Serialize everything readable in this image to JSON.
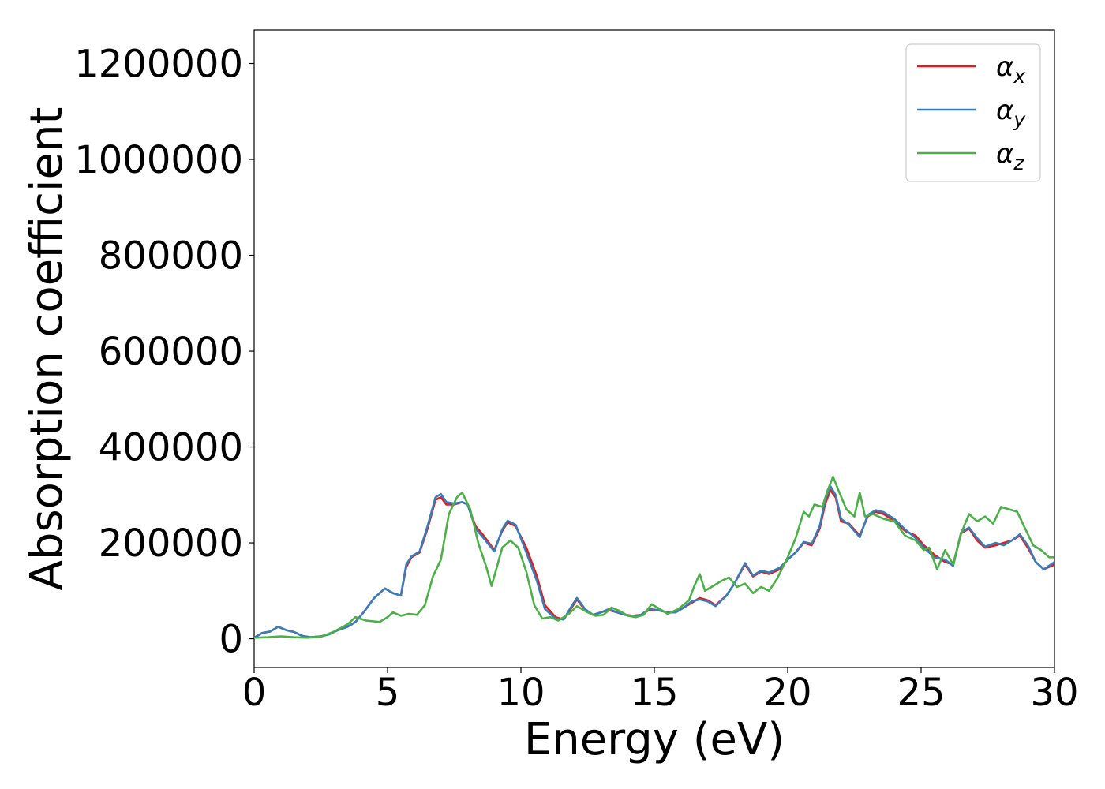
{
  "chart_data": {
    "type": "line",
    "title": "",
    "xlabel": "Energy (eV)",
    "ylabel": "Absorption coefficient",
    "xlim": [
      0,
      30
    ],
    "ylim": [
      -60000,
      1270000
    ],
    "xticks": [
      0,
      5,
      10,
      15,
      20,
      25,
      30
    ],
    "yticks": [
      0,
      200000,
      400000,
      600000,
      800000,
      1000000,
      1200000
    ],
    "xtick_labels": [
      "0",
      "5",
      "10",
      "15",
      "20",
      "25",
      "30"
    ],
    "ytick_labels": [
      "0",
      "200000",
      "400000",
      "600000",
      "800000",
      "1000000",
      "1200000"
    ],
    "grid": false,
    "legend_position": "top-right",
    "series": [
      {
        "name": "α",
        "subscript": "x",
        "color": "#e41a1c",
        "points": [
          [
            0,
            2000
          ],
          [
            0.3,
            12000
          ],
          [
            0.6,
            15000
          ],
          [
            0.9,
            25000
          ],
          [
            1.2,
            18000
          ],
          [
            1.5,
            14000
          ],
          [
            1.8,
            6000
          ],
          [
            2.1,
            3000
          ],
          [
            2.5,
            5000
          ],
          [
            2.8,
            9000
          ],
          [
            3.1,
            17000
          ],
          [
            3.5,
            25000
          ],
          [
            3.8,
            35000
          ],
          [
            4.1,
            55000
          ],
          [
            4.5,
            85000
          ],
          [
            4.7,
            95000
          ],
          [
            4.9,
            105000
          ],
          [
            5.2,
            95000
          ],
          [
            5.5,
            90000
          ],
          [
            5.7,
            150000
          ],
          [
            5.9,
            170000
          ],
          [
            6.2,
            180000
          ],
          [
            6.5,
            230000
          ],
          [
            6.8,
            290000
          ],
          [
            7.0,
            295000
          ],
          [
            7.2,
            280000
          ],
          [
            7.5,
            280000
          ],
          [
            7.8,
            285000
          ],
          [
            8.0,
            280000
          ],
          [
            8.3,
            235000
          ],
          [
            8.6,
            215000
          ],
          [
            9.0,
            185000
          ],
          [
            9.3,
            225000
          ],
          [
            9.5,
            243000
          ],
          [
            9.8,
            235000
          ],
          [
            10.2,
            190000
          ],
          [
            10.6,
            130000
          ],
          [
            10.9,
            70000
          ],
          [
            11.3,
            45000
          ],
          [
            11.6,
            40000
          ],
          [
            11.9,
            65000
          ],
          [
            12.1,
            82000
          ],
          [
            12.4,
            60000
          ],
          [
            12.7,
            50000
          ],
          [
            13.0,
            55000
          ],
          [
            13.3,
            60000
          ],
          [
            13.6,
            55000
          ],
          [
            13.9,
            50000
          ],
          [
            14.2,
            48000
          ],
          [
            14.5,
            50000
          ],
          [
            14.8,
            60000
          ],
          [
            15.1,
            60000
          ],
          [
            15.5,
            55000
          ],
          [
            15.8,
            55000
          ],
          [
            16.1,
            65000
          ],
          [
            16.4,
            75000
          ],
          [
            16.7,
            85000
          ],
          [
            17.0,
            80000
          ],
          [
            17.3,
            70000
          ],
          [
            17.7,
            90000
          ],
          [
            18.0,
            115000
          ],
          [
            18.4,
            155000
          ],
          [
            18.7,
            130000
          ],
          [
            19.0,
            140000
          ],
          [
            19.3,
            135000
          ],
          [
            19.7,
            145000
          ],
          [
            20.0,
            165000
          ],
          [
            20.3,
            180000
          ],
          [
            20.6,
            200000
          ],
          [
            20.9,
            195000
          ],
          [
            21.2,
            230000
          ],
          [
            21.4,
            280000
          ],
          [
            21.6,
            310000
          ],
          [
            21.8,
            295000
          ],
          [
            22.0,
            245000
          ],
          [
            22.3,
            240000
          ],
          [
            22.7,
            215000
          ],
          [
            23.0,
            255000
          ],
          [
            23.3,
            265000
          ],
          [
            23.6,
            260000
          ],
          [
            24.0,
            245000
          ],
          [
            24.4,
            225000
          ],
          [
            24.8,
            215000
          ],
          [
            25.1,
            195000
          ],
          [
            25.5,
            175000
          ],
          [
            25.9,
            160000
          ],
          [
            26.2,
            155000
          ],
          [
            26.5,
            220000
          ],
          [
            26.8,
            230000
          ],
          [
            27.1,
            205000
          ],
          [
            27.4,
            190000
          ],
          [
            27.8,
            195000
          ],
          [
            28.1,
            200000
          ],
          [
            28.4,
            205000
          ],
          [
            28.7,
            215000
          ],
          [
            29.0,
            190000
          ],
          [
            29.3,
            160000
          ],
          [
            29.6,
            145000
          ],
          [
            30.0,
            155000
          ]
        ]
      },
      {
        "name": "α",
        "subscript": "y",
        "color": "#377eb8",
        "points": [
          [
            0,
            2000
          ],
          [
            0.3,
            12000
          ],
          [
            0.6,
            15000
          ],
          [
            0.9,
            25000
          ],
          [
            1.2,
            18000
          ],
          [
            1.5,
            14000
          ],
          [
            1.8,
            6000
          ],
          [
            2.1,
            3000
          ],
          [
            2.5,
            5000
          ],
          [
            2.8,
            9000
          ],
          [
            3.1,
            17000
          ],
          [
            3.5,
            25000
          ],
          [
            3.8,
            35000
          ],
          [
            4.1,
            55000
          ],
          [
            4.5,
            85000
          ],
          [
            4.7,
            95000
          ],
          [
            4.9,
            105000
          ],
          [
            5.2,
            95000
          ],
          [
            5.5,
            90000
          ],
          [
            5.7,
            155000
          ],
          [
            5.9,
            172000
          ],
          [
            6.2,
            182000
          ],
          [
            6.5,
            235000
          ],
          [
            6.8,
            295000
          ],
          [
            7.0,
            302000
          ],
          [
            7.2,
            285000
          ],
          [
            7.5,
            282000
          ],
          [
            7.8,
            285000
          ],
          [
            8.0,
            280000
          ],
          [
            8.3,
            230000
          ],
          [
            8.6,
            210000
          ],
          [
            9.0,
            182000
          ],
          [
            9.3,
            228000
          ],
          [
            9.5,
            246000
          ],
          [
            9.8,
            238000
          ],
          [
            10.2,
            180000
          ],
          [
            10.6,
            120000
          ],
          [
            10.9,
            62000
          ],
          [
            11.3,
            42000
          ],
          [
            11.6,
            40000
          ],
          [
            11.9,
            68000
          ],
          [
            12.1,
            85000
          ],
          [
            12.4,
            62000
          ],
          [
            12.7,
            50000
          ],
          [
            13.0,
            55000
          ],
          [
            13.3,
            62000
          ],
          [
            13.6,
            55000
          ],
          [
            13.9,
            50000
          ],
          [
            14.2,
            47000
          ],
          [
            14.5,
            50000
          ],
          [
            14.8,
            62000
          ],
          [
            15.1,
            60000
          ],
          [
            15.5,
            55000
          ],
          [
            15.8,
            55000
          ],
          [
            16.1,
            65000
          ],
          [
            16.4,
            78000
          ],
          [
            16.7,
            82000
          ],
          [
            17.0,
            78000
          ],
          [
            17.3,
            68000
          ],
          [
            17.7,
            90000
          ],
          [
            18.0,
            115000
          ],
          [
            18.4,
            158000
          ],
          [
            18.7,
            132000
          ],
          [
            19.0,
            142000
          ],
          [
            19.3,
            138000
          ],
          [
            19.7,
            148000
          ],
          [
            20.0,
            165000
          ],
          [
            20.3,
            180000
          ],
          [
            20.6,
            202000
          ],
          [
            20.9,
            198000
          ],
          [
            21.2,
            235000
          ],
          [
            21.4,
            288000
          ],
          [
            21.6,
            318000
          ],
          [
            21.8,
            300000
          ],
          [
            22.0,
            250000
          ],
          [
            22.3,
            238000
          ],
          [
            22.7,
            212000
          ],
          [
            23.0,
            258000
          ],
          [
            23.3,
            268000
          ],
          [
            23.6,
            264000
          ],
          [
            24.0,
            250000
          ],
          [
            24.4,
            228000
          ],
          [
            24.8,
            210000
          ],
          [
            25.1,
            190000
          ],
          [
            25.5,
            170000
          ],
          [
            25.9,
            165000
          ],
          [
            26.2,
            152000
          ],
          [
            26.5,
            222000
          ],
          [
            26.8,
            232000
          ],
          [
            27.1,
            210000
          ],
          [
            27.4,
            192000
          ],
          [
            27.8,
            200000
          ],
          [
            28.1,
            195000
          ],
          [
            28.4,
            205000
          ],
          [
            28.7,
            218000
          ],
          [
            29.0,
            195000
          ],
          [
            29.3,
            160000
          ],
          [
            29.6,
            145000
          ],
          [
            30.0,
            160000
          ]
        ]
      },
      {
        "name": "α",
        "subscript": "z",
        "color": "#4daf4a",
        "points": [
          [
            0,
            2000
          ],
          [
            0.5,
            3000
          ],
          [
            1.0,
            5000
          ],
          [
            1.5,
            3000
          ],
          [
            2.0,
            2000
          ],
          [
            2.5,
            4000
          ],
          [
            3.0,
            15000
          ],
          [
            3.5,
            30000
          ],
          [
            3.8,
            45000
          ],
          [
            4.2,
            38000
          ],
          [
            4.7,
            35000
          ],
          [
            5.0,
            45000
          ],
          [
            5.2,
            55000
          ],
          [
            5.5,
            48000
          ],
          [
            5.8,
            52000
          ],
          [
            6.1,
            50000
          ],
          [
            6.4,
            70000
          ],
          [
            6.7,
            130000
          ],
          [
            7.0,
            165000
          ],
          [
            7.3,
            260000
          ],
          [
            7.6,
            295000
          ],
          [
            7.8,
            305000
          ],
          [
            8.1,
            270000
          ],
          [
            8.4,
            200000
          ],
          [
            8.7,
            150000
          ],
          [
            8.9,
            110000
          ],
          [
            9.1,
            150000
          ],
          [
            9.3,
            190000
          ],
          [
            9.6,
            205000
          ],
          [
            9.9,
            190000
          ],
          [
            10.2,
            140000
          ],
          [
            10.5,
            70000
          ],
          [
            10.8,
            42000
          ],
          [
            11.1,
            45000
          ],
          [
            11.4,
            38000
          ],
          [
            11.8,
            52000
          ],
          [
            12.1,
            68000
          ],
          [
            12.5,
            55000
          ],
          [
            12.8,
            48000
          ],
          [
            13.1,
            50000
          ],
          [
            13.4,
            65000
          ],
          [
            13.7,
            58000
          ],
          [
            14.0,
            48000
          ],
          [
            14.3,
            45000
          ],
          [
            14.6,
            50000
          ],
          [
            14.9,
            72000
          ],
          [
            15.2,
            62000
          ],
          [
            15.5,
            52000
          ],
          [
            15.9,
            62000
          ],
          [
            16.3,
            80000
          ],
          [
            16.5,
            110000
          ],
          [
            16.7,
            135000
          ],
          [
            16.9,
            100000
          ],
          [
            17.2,
            110000
          ],
          [
            17.5,
            120000
          ],
          [
            17.8,
            128000
          ],
          [
            18.1,
            108000
          ],
          [
            18.4,
            115000
          ],
          [
            18.7,
            95000
          ],
          [
            19.0,
            108000
          ],
          [
            19.3,
            100000
          ],
          [
            19.6,
            125000
          ],
          [
            20.0,
            170000
          ],
          [
            20.3,
            210000
          ],
          [
            20.6,
            265000
          ],
          [
            20.8,
            255000
          ],
          [
            21.0,
            280000
          ],
          [
            21.3,
            275000
          ],
          [
            21.5,
            310000
          ],
          [
            21.7,
            338000
          ],
          [
            21.9,
            310000
          ],
          [
            22.2,
            270000
          ],
          [
            22.5,
            255000
          ],
          [
            22.7,
            305000
          ],
          [
            22.9,
            255000
          ],
          [
            23.2,
            260000
          ],
          [
            23.6,
            250000
          ],
          [
            24.0,
            245000
          ],
          [
            24.4,
            215000
          ],
          [
            24.8,
            205000
          ],
          [
            25.1,
            185000
          ],
          [
            25.3,
            190000
          ],
          [
            25.6,
            145000
          ],
          [
            25.9,
            185000
          ],
          [
            26.2,
            155000
          ],
          [
            26.5,
            220000
          ],
          [
            26.8,
            260000
          ],
          [
            27.1,
            245000
          ],
          [
            27.4,
            255000
          ],
          [
            27.7,
            240000
          ],
          [
            28.0,
            275000
          ],
          [
            28.3,
            270000
          ],
          [
            28.6,
            265000
          ],
          [
            28.9,
            230000
          ],
          [
            29.2,
            195000
          ],
          [
            29.5,
            185000
          ],
          [
            29.8,
            170000
          ],
          [
            30.0,
            170000
          ]
        ]
      }
    ]
  }
}
